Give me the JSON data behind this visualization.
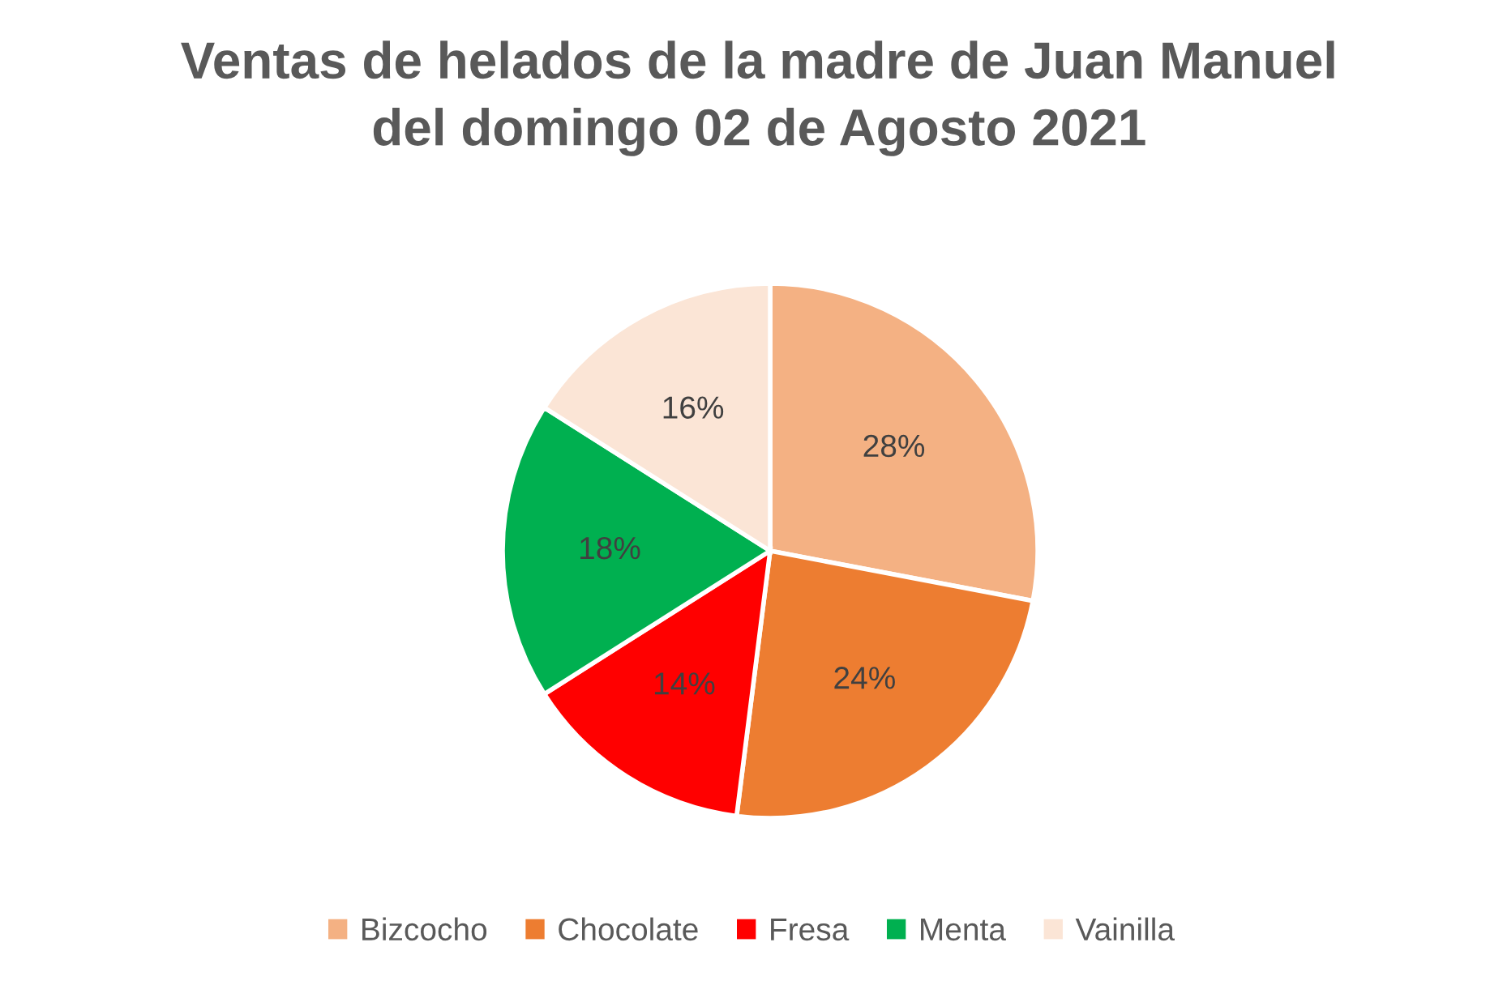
{
  "chart_data": {
    "type": "pie",
    "title": "Ventas de helados de la madre de Juan Manuel\ndel domingo 02 de Agosto 2021",
    "categories": [
      "Bizcocho",
      "Chocolate",
      "Fresa",
      "Menta",
      "Vainilla"
    ],
    "values": [
      28,
      24,
      14,
      18,
      16
    ],
    "colors": [
      "#f4b183",
      "#ed7d31",
      "#ff0000",
      "#00b050",
      "#fbe5d6"
    ],
    "value_labels": [
      "28%",
      "24%",
      "14%",
      "18%",
      "16%"
    ],
    "legend": "bottom"
  }
}
